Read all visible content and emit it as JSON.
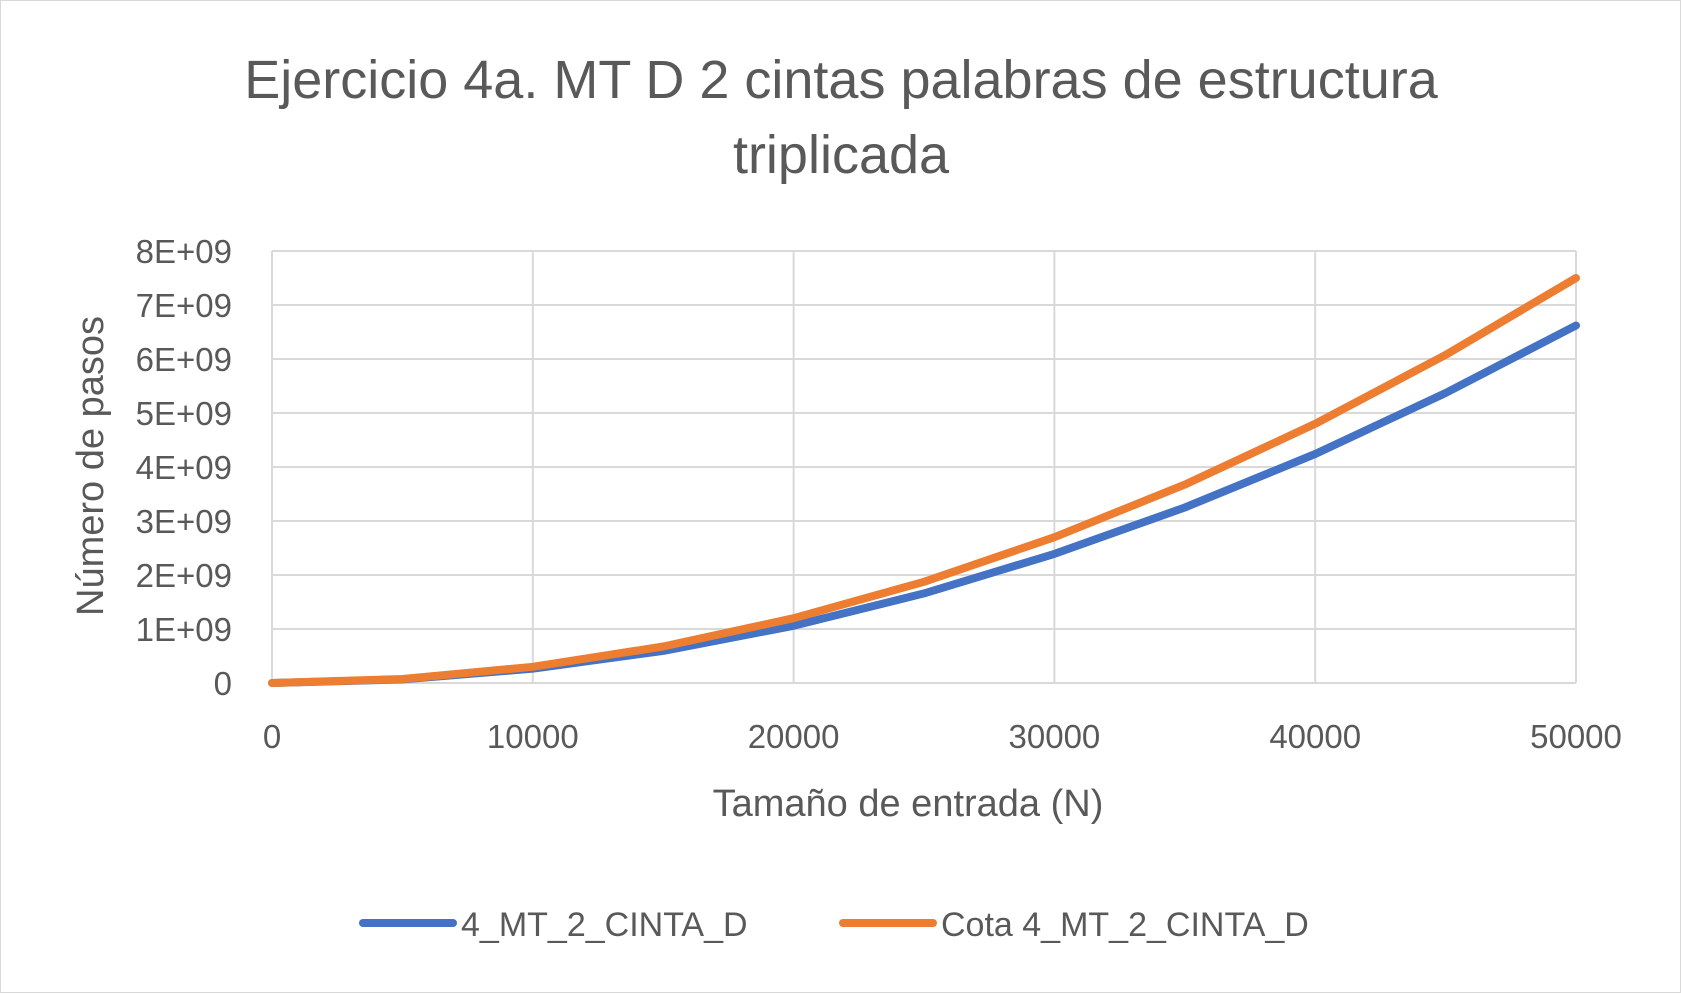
{
  "chart_data": {
    "type": "line",
    "title_lines": [
      "Ejercicio 4a. MT D 2 cintas palabras de estructura",
      "triplicada"
    ],
    "xlabel": "Tamaño de entrada (N)",
    "ylabel": "Número de pasos",
    "xlim": [
      0,
      50000
    ],
    "ylim": [
      0,
      8000000000
    ],
    "x_ticks": [
      "0",
      "10000",
      "20000",
      "30000",
      "40000",
      "50000"
    ],
    "y_ticks": [
      "0",
      "1E+09",
      "2E+09",
      "3E+09",
      "4E+09",
      "5E+09",
      "6E+09",
      "7E+09",
      "8E+09"
    ],
    "grid": true,
    "legend_position": "bottom",
    "series": [
      {
        "name": "4_MT_2_CINTA_D",
        "color": "#4472C4",
        "x": [
          0,
          5000,
          10000,
          15000,
          20000,
          25000,
          30000,
          35000,
          40000,
          45000,
          50000
        ],
        "values": [
          0,
          66000000,
          265000000,
          595000000,
          1060000000,
          1660000000,
          2390000000,
          3250000000,
          4240000000,
          5370000000,
          6620000000
        ]
      },
      {
        "name": "Cota 4_MT_2_CINTA_D",
        "color": "#ED7D31",
        "x": [
          0,
          5000,
          10000,
          15000,
          20000,
          25000,
          30000,
          35000,
          40000,
          45000,
          50000
        ],
        "values": [
          0,
          75000000,
          300000000,
          675000000,
          1200000000,
          1875000000,
          2700000000,
          3675000000,
          4800000000,
          6075000000,
          7500000000
        ]
      }
    ]
  }
}
